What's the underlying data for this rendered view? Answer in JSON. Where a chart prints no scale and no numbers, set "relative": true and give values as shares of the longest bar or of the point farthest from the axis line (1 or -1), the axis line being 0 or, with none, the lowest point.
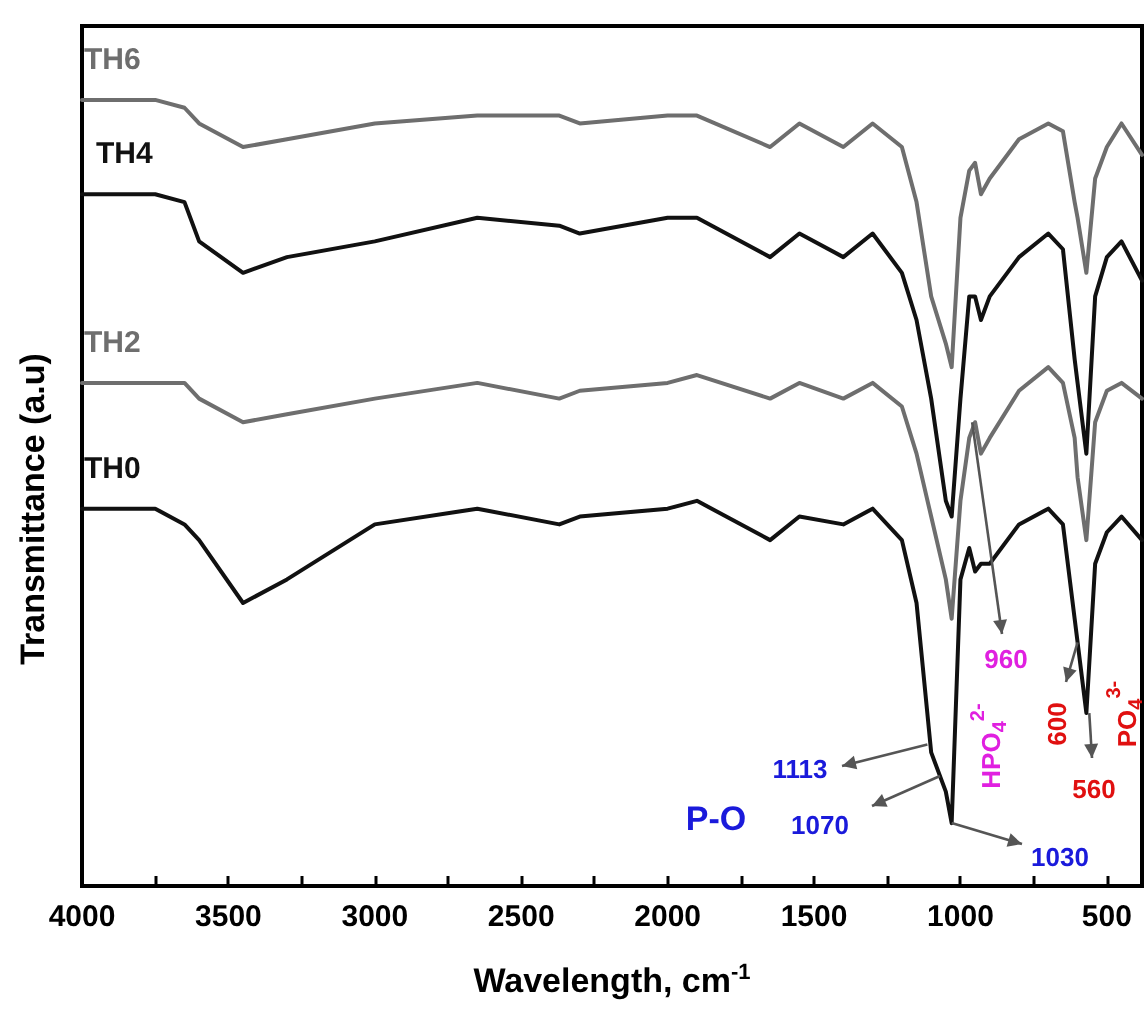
{
  "chart_data": {
    "type": "line",
    "relative": true,
    "xlabel": "Wavelength, cm$^{-1}$",
    "ylabel": "Transmittance (a.u)",
    "x": [
      4000,
      3750,
      3650,
      3600,
      3450,
      3300,
      3000,
      2650,
      2370,
      2300,
      2000,
      1900,
      1650,
      1550,
      1400,
      1300,
      1200,
      1150,
      1100,
      1050,
      1030,
      1000,
      970,
      950,
      930,
      900,
      800,
      700,
      650,
      610,
      600,
      570,
      540,
      500,
      450,
      380
    ],
    "xlim": [
      4000,
      380
    ],
    "xticks": [
      4000,
      {
        "value": 3750,
        "label": null
      },
      3500,
      {
        "value": 3250,
        "label": null
      },
      3000,
      {
        "value": 2750,
        "label": null
      },
      2500,
      {
        "value": 2250,
        "label": null
      },
      2000,
      {
        "value": 1750,
        "label": null
      },
      1500,
      {
        "value": 1250,
        "label": null
      },
      1000,
      {
        "value": 750,
        "label": null
      },
      500
    ],
    "marker": "none",
    "line_style": "solid",
    "legend": false,
    "grid": false,
    "series": [
      {
        "name": "TH6",
        "color": "#6e6e6e",
        "values": [
          1.0,
          1.0,
          0.99,
          0.97,
          0.94,
          0.95,
          0.97,
          0.98,
          0.98,
          0.97,
          0.98,
          0.98,
          0.94,
          0.97,
          0.94,
          0.97,
          0.94,
          0.87,
          0.75,
          0.69,
          0.66,
          0.85,
          0.91,
          0.92,
          0.88,
          0.9,
          0.95,
          0.97,
          0.96,
          0.87,
          0.85,
          0.78,
          0.9,
          0.94,
          0.97,
          0.93
        ]
      },
      {
        "name": "TH4",
        "color": "#111111",
        "values": [
          0.88,
          0.88,
          0.87,
          0.82,
          0.78,
          0.8,
          0.82,
          0.85,
          0.84,
          0.83,
          0.85,
          0.85,
          0.8,
          0.83,
          0.8,
          0.83,
          0.78,
          0.72,
          0.62,
          0.49,
          0.47,
          0.62,
          0.75,
          0.75,
          0.72,
          0.75,
          0.8,
          0.83,
          0.81,
          0.67,
          0.64,
          0.55,
          0.75,
          0.8,
          0.82,
          0.77
        ]
      },
      {
        "name": "TH2",
        "color": "#6e6e6e",
        "values": [
          0.64,
          0.64,
          0.64,
          0.62,
          0.59,
          0.6,
          0.62,
          0.64,
          0.62,
          0.63,
          0.64,
          0.65,
          0.62,
          0.64,
          0.62,
          0.64,
          0.61,
          0.55,
          0.47,
          0.39,
          0.34,
          0.49,
          0.57,
          0.59,
          0.55,
          0.57,
          0.63,
          0.66,
          0.64,
          0.57,
          0.52,
          0.44,
          0.59,
          0.63,
          0.64,
          0.62
        ]
      },
      {
        "name": "TH0",
        "color": "#111111",
        "values": [
          0.48,
          0.48,
          0.46,
          0.44,
          0.36,
          0.39,
          0.46,
          0.48,
          0.46,
          0.47,
          0.48,
          0.49,
          0.44,
          0.47,
          0.46,
          0.48,
          0.44,
          0.36,
          0.17,
          0.12,
          0.08,
          0.39,
          0.43,
          0.4,
          0.41,
          0.41,
          0.46,
          0.48,
          0.46,
          0.34,
          0.31,
          0.22,
          0.41,
          0.45,
          0.47,
          0.44
        ]
      }
    ],
    "annotations": [
      {
        "text": "1113",
        "x": 1113,
        "y": 0.18
      },
      {
        "text": "1070",
        "x": 1070,
        "y": 0.14
      },
      {
        "text": "1030",
        "x": 1030,
        "y": 0.08
      },
      {
        "text": "960",
        "x": 960,
        "y": 0.59
      },
      {
        "text": "600",
        "x": 600,
        "y": 0.31
      },
      {
        "text": "560",
        "x": 560,
        "y": 0.22
      },
      "P-O",
      "HPO$_{4}$$^{2-}$",
      "PO$_{4}$$^{3-}$"
    ]
  }
}
